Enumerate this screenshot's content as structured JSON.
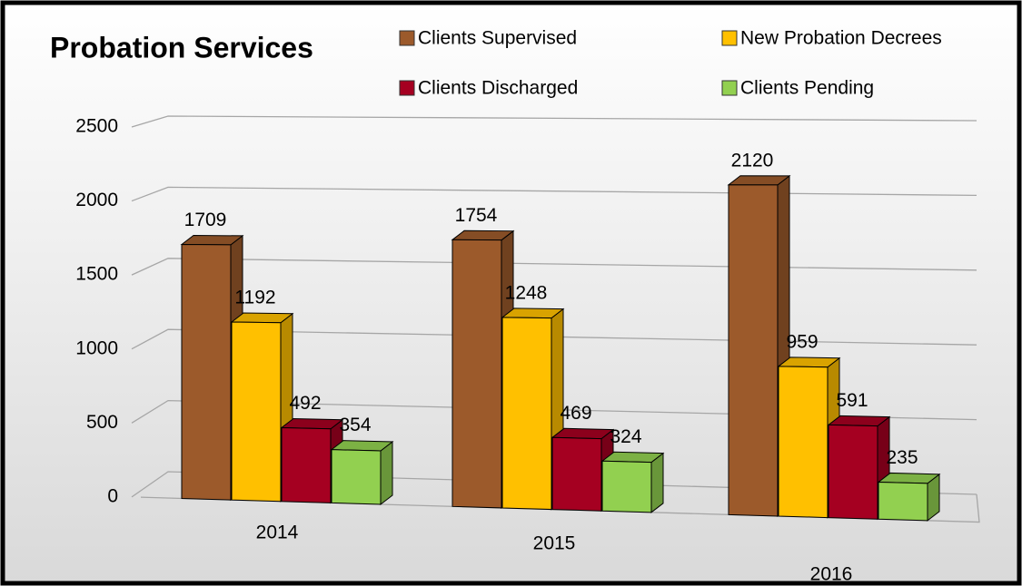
{
  "chart_data": {
    "type": "bar3d",
    "title": "Probation Services",
    "categories": [
      "2014",
      "2015",
      "2016"
    ],
    "series": [
      {
        "name": "Clients Supervised",
        "color": "#9c5a2b",
        "values": [
          1709,
          1754,
          2120
        ]
      },
      {
        "name": "New Probation Decrees",
        "color": "#ffc000",
        "values": [
          1192,
          1248,
          959
        ]
      },
      {
        "name": "Clients Discharged",
        "color": "#a50021",
        "values": [
          492,
          469,
          591
        ]
      },
      {
        "name": "Clients Pending",
        "color": "#92d050",
        "values": [
          354,
          324,
          235
        ]
      }
    ],
    "ylim": [
      0,
      2500
    ],
    "yticks": [
      0,
      500,
      1000,
      1500,
      2000,
      2500
    ],
    "grid": true,
    "legend": "top"
  }
}
